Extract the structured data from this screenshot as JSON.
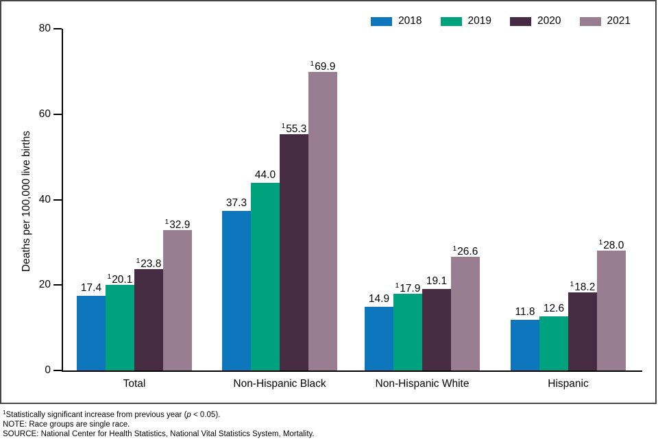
{
  "chart_data": {
    "type": "bar",
    "title": "",
    "categories": [
      "Total",
      "Non-Hispanic Black",
      "Non-Hispanic White",
      "Hispanic"
    ],
    "series": [
      {
        "name": "2018",
        "color": "#0e76bc",
        "values": [
          17.4,
          37.3,
          14.9,
          11.8
        ],
        "significant": [
          false,
          false,
          false,
          false
        ]
      },
      {
        "name": "2019",
        "color": "#00a27d",
        "values": [
          20.1,
          44.0,
          17.9,
          12.6
        ],
        "significant": [
          true,
          false,
          true,
          false
        ]
      },
      {
        "name": "2020",
        "color": "#472b42",
        "values": [
          23.8,
          55.3,
          19.1,
          18.2
        ],
        "significant": [
          true,
          true,
          false,
          true
        ]
      },
      {
        "name": "2021",
        "color": "#997e92",
        "values": [
          32.9,
          69.9,
          26.6,
          28.0
        ],
        "significant": [
          true,
          true,
          true,
          true
        ]
      }
    ],
    "significance_marker": "1",
    "xlabel": "",
    "ylabel": "Deaths per 100,000 live births",
    "ylim": [
      0,
      80
    ],
    "yticks": [
      0,
      20,
      40,
      60,
      80
    ],
    "grid": false,
    "legend_position": "top-right",
    "axis_color": "#000000",
    "frame_border_color": "#454545"
  },
  "footnotes": {
    "line1_marker": "1",
    "line1_text": "Statistically significant increase from previous year (",
    "line1_p": "p",
    "line1_rest": " < 0.05).",
    "line2": "NOTE: Race groups are single race.",
    "line3": "SOURCE: National Center for Health Statistics, National Vital Statistics System, Mortality."
  }
}
